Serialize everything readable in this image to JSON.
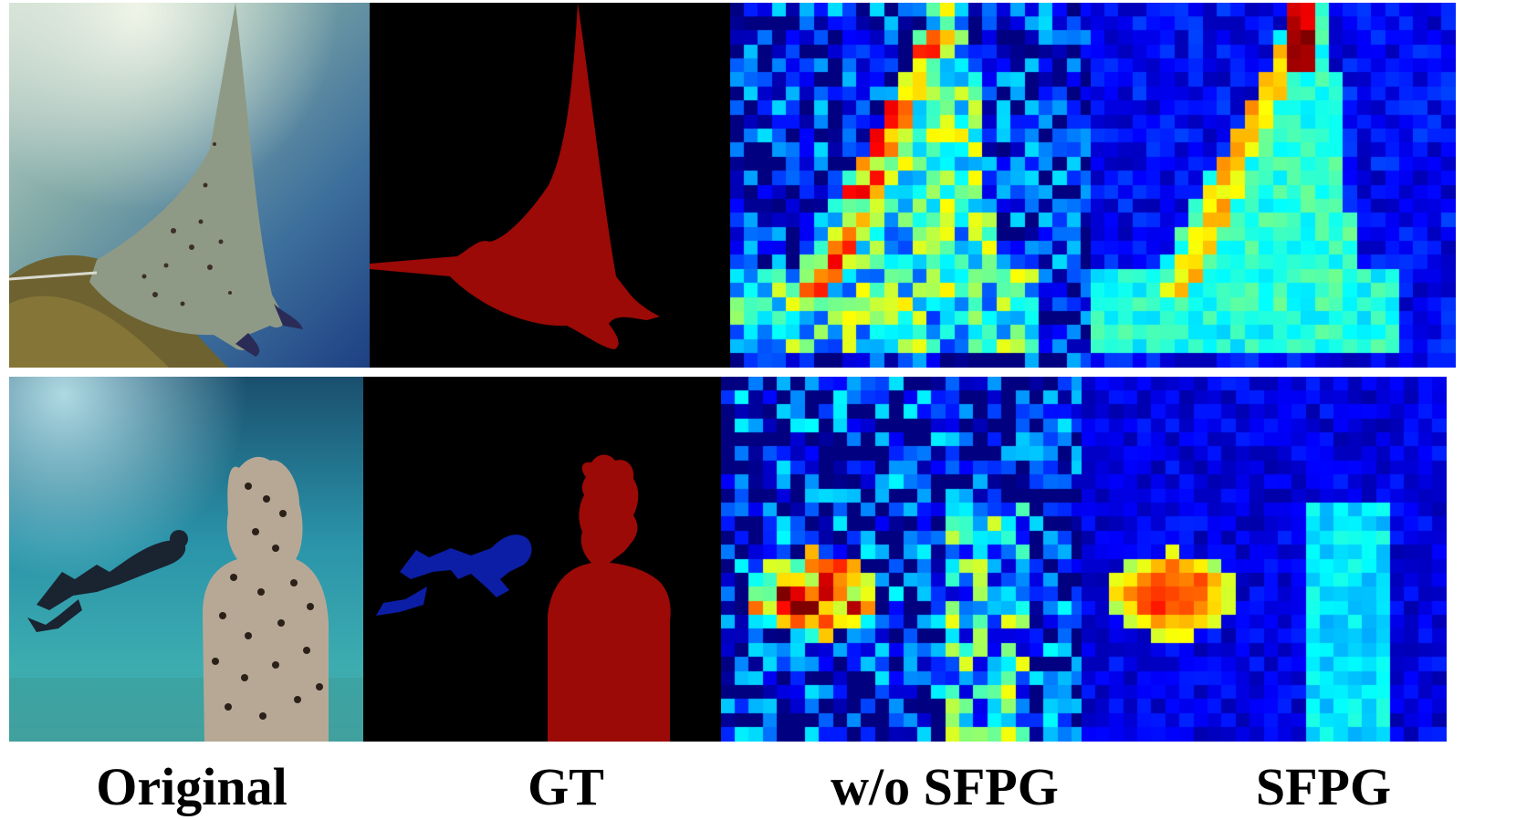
{
  "columns": [
    {
      "id": "original",
      "label": "Original"
    },
    {
      "id": "gt",
      "label": "GT"
    },
    {
      "id": "wo_sfpg",
      "label": "w/o SFPG"
    },
    {
      "id": "sfpg",
      "label": "SFPG"
    }
  ],
  "rows": [
    {
      "scene": "manta ray swimming over coral reef",
      "gt_classes": [
        "manta-ray"
      ]
    },
    {
      "scene": "scuba diver next to underwater statue",
      "gt_classes": [
        "diver",
        "statue"
      ]
    }
  ],
  "colors": {
    "gt_background": "#000000",
    "gt_class_red": "#9b0a06",
    "gt_class_blue": "#0c1ea6",
    "heatmap_colormap": "jet"
  }
}
